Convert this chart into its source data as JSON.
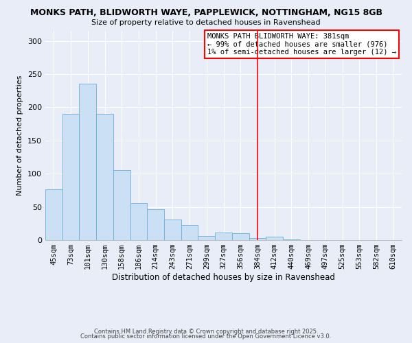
{
  "title_line1": "MONKS PATH, BLIDWORTH WAYE, PAPPLEWICK, NOTTINGHAM, NG15 8GB",
  "title_line2": "Size of property relative to detached houses in Ravenshead",
  "xlabel": "Distribution of detached houses by size in Ravenshead",
  "ylabel": "Number of detached properties",
  "bar_labels": [
    "45sqm",
    "73sqm",
    "101sqm",
    "130sqm",
    "158sqm",
    "186sqm",
    "214sqm",
    "243sqm",
    "271sqm",
    "299sqm",
    "327sqm",
    "356sqm",
    "384sqm",
    "412sqm",
    "440sqm",
    "469sqm",
    "497sqm",
    "525sqm",
    "553sqm",
    "582sqm",
    "610sqm"
  ],
  "bar_values": [
    76,
    190,
    235,
    190,
    105,
    56,
    46,
    31,
    23,
    6,
    11,
    10,
    3,
    5,
    1,
    0,
    0,
    0,
    0,
    0,
    0
  ],
  "bar_color": "#cce0f5",
  "bar_edge_color": "#6baed6",
  "vline_x_index": 12,
  "vline_color": "red",
  "annotation_title": "MONKS PATH BLIDWORTH WAYE: 381sqm",
  "annotation_line2": "← 99% of detached houses are smaller (976)",
  "annotation_line3": "1% of semi-detached houses are larger (12) →",
  "annotation_box_color": "white",
  "annotation_box_edge_color": "red",
  "ylim": [
    0,
    315
  ],
  "yticks": [
    0,
    50,
    100,
    150,
    200,
    250,
    300
  ],
  "footer_line1": "Contains HM Land Registry data © Crown copyright and database right 2025.",
  "footer_line2": "Contains public sector information licensed under the Open Government Licence v3.0.",
  "background_color": "#e8edf8",
  "plot_bg_color": "#e8edf8",
  "grid_color": "#ffffff",
  "title_fontsize": 9.0,
  "subtitle_fontsize": 8.0,
  "xlabel_fontsize": 8.5,
  "ylabel_fontsize": 8.0,
  "tick_fontsize": 7.5,
  "footer_fontsize": 6.0,
  "annotation_fontsize": 7.5
}
